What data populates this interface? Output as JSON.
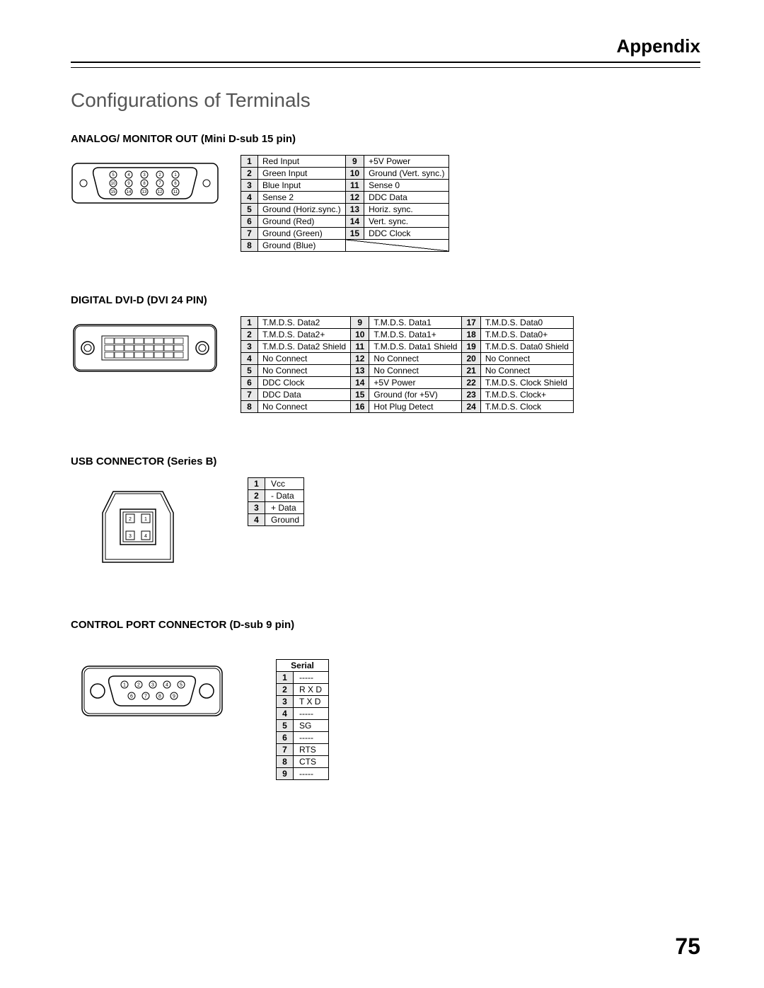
{
  "header": {
    "title": "Appendix"
  },
  "main_title": "Configurations of Terminals",
  "page_number": "75",
  "sections": {
    "analog": {
      "title": "ANALOG/ MONITOR OUT (Mini D-sub 15 pin)",
      "table": {
        "rows": 8,
        "col1": [
          "Red Input",
          "Green Input",
          "Blue Input",
          "Sense 2",
          "Ground (Horiz.sync.)",
          "Ground (Red)",
          "Ground (Green)",
          "Ground (Blue)"
        ],
        "col2_nums": [
          "9",
          "10",
          "11",
          "12",
          "13",
          "14",
          "15"
        ],
        "col2": [
          "+5V Power",
          "Ground (Vert. sync.)",
          "Sense 0",
          "DDC Data",
          "Horiz. sync.",
          "Vert. sync.",
          "DDC Clock"
        ]
      }
    },
    "dvi": {
      "title": "DIGITAL DVI-D (DVI 24 PIN)",
      "table": {
        "rows": 8,
        "col1": [
          "T.M.D.S. Data2",
          "T.M.D.S. Data2+",
          "T.M.D.S. Data2 Shield",
          "No Connect",
          "No Connect",
          "DDC Clock",
          "DDC Data",
          "No Connect"
        ],
        "col2": [
          "T.M.D.S. Data1",
          "T.M.D.S. Data1+",
          "T.M.D.S. Data1 Shield",
          "No Connect",
          "No Connect",
          "+5V Power",
          "Ground (for +5V)",
          "Hot Plug Detect"
        ],
        "col3": [
          "T.M.D.S. Data0",
          "T.M.D.S. Data0+",
          "T.M.D.S. Data0 Shield",
          "No Connect",
          "No Connect",
          "T.M.D.S. Clock Shield",
          "T.M.D.S. Clock+",
          "T.M.D.S. Clock"
        ]
      }
    },
    "usb": {
      "title": "USB CONNECTOR (Series B)",
      "table": {
        "rows": [
          "Vcc",
          "- Data",
          "+ Data",
          "Ground"
        ]
      }
    },
    "control": {
      "title": "CONTROL PORT CONNECTOR (D-sub 9 pin)",
      "table": {
        "header": "Serial",
        "rows": [
          "-----",
          "R X D",
          "T X D",
          "-----",
          "SG",
          "-----",
          "RTS",
          "CTS",
          "-----"
        ]
      }
    }
  }
}
